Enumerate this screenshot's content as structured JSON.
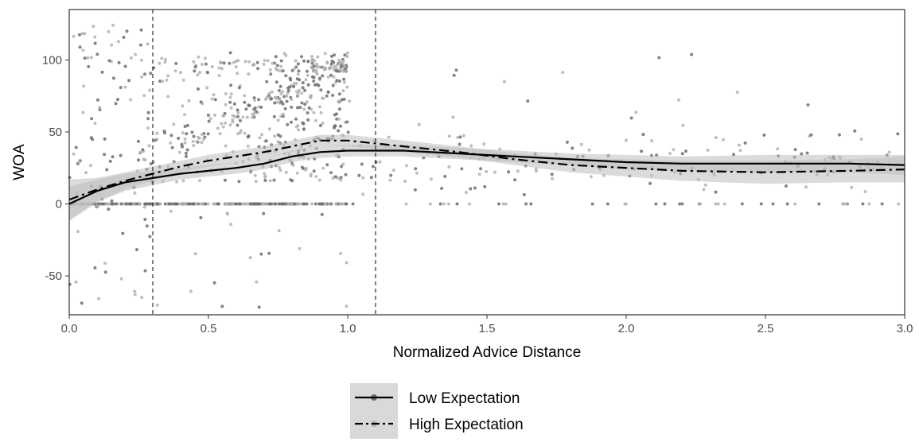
{
  "chart_data": {
    "type": "scatter",
    "xlabel": "Normalized Advice Distance",
    "ylabel": "WOA",
    "xlim": [
      0,
      3
    ],
    "ylim": [
      -77,
      135
    ],
    "x_ticks": [
      "0.0",
      "0.5",
      "1.0",
      "1.5",
      "2.0",
      "2.5",
      "3.0"
    ],
    "y_ticks": [
      "-50",
      "0",
      "50",
      "100"
    ],
    "reference_lines_x": [
      0.3,
      1.1
    ],
    "grid": false,
    "legend_position": "bottom",
    "colors": {
      "low_points": "#6e6e6e",
      "high_points": "#b3b3b3",
      "ribbon": "#bdbdbd",
      "line": "#000000"
    },
    "series": [
      {
        "name": "Low Expectation",
        "line_style": "solid",
        "smooth_x": [
          0.0,
          0.1,
          0.2,
          0.3,
          0.4,
          0.5,
          0.6,
          0.7,
          0.8,
          0.9,
          1.0,
          1.2,
          1.4,
          1.6,
          1.8,
          2.0,
          2.2,
          2.5,
          2.8,
          3.0
        ],
        "smooth_y": [
          0,
          9,
          15,
          18,
          21,
          23,
          25,
          28,
          33,
          36,
          37,
          37,
          35,
          33,
          31,
          29,
          28,
          28,
          28,
          27
        ],
        "ci_half_width": [
          12,
          8,
          6,
          5,
          4,
          4,
          4,
          4,
          4,
          4,
          4,
          4,
          4,
          4,
          4,
          5,
          5,
          6,
          6,
          7
        ]
      },
      {
        "name": "High Expectation",
        "line_style": "dashdot",
        "smooth_x": [
          0.0,
          0.1,
          0.2,
          0.3,
          0.4,
          0.5,
          0.6,
          0.7,
          0.8,
          0.9,
          1.0,
          1.2,
          1.4,
          1.6,
          1.8,
          2.0,
          2.2,
          2.5,
          2.8,
          3.0
        ],
        "smooth_y": [
          3,
          10,
          16,
          21,
          26,
          30,
          33,
          36,
          40,
          44,
          44,
          40,
          36,
          31,
          27,
          25,
          23,
          22,
          23,
          24
        ],
        "ci_half_width": [
          14,
          8,
          6,
          5,
          4,
          4,
          4,
          4,
          4,
          4,
          4,
          4,
          4,
          4,
          5,
          6,
          7,
          8,
          8,
          9
        ]
      }
    ]
  }
}
